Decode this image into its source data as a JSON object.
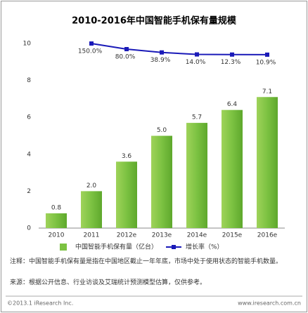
{
  "chart_data": {
    "type": "bar",
    "title": "2010-2016年中国智能手机保有量规模",
    "categories": [
      "2010",
      "2011",
      "2012e",
      "2013e",
      "2014e",
      "2015e",
      "2016e"
    ],
    "series": [
      {
        "name": "中国智能手机保有量（亿台）",
        "type": "bar",
        "color": "#7cc242",
        "values": [
          0.8,
          2.0,
          3.6,
          5.0,
          5.7,
          6.4,
          7.1
        ],
        "value_labels": [
          "0.8",
          "2.0",
          "3.6",
          "5.0",
          "5.7",
          "6.4",
          "7.1"
        ]
      },
      {
        "name": "增长率（%）",
        "type": "line",
        "axis": "y2",
        "color": "#1a1ab8",
        "values": [
          null,
          150.0,
          80.0,
          38.9,
          14.0,
          12.3,
          10.9
        ],
        "value_labels": [
          null,
          "150.0%",
          "80.0%",
          "38.9%",
          "14.0%",
          "12.3%",
          "10.9%"
        ]
      }
    ],
    "ylim": [
      0,
      10
    ],
    "yticks": [
      0,
      2,
      4,
      6,
      8,
      10
    ],
    "y2lim": [
      -2150,
      150
    ],
    "grid": false
  },
  "notes": [
    "注释：中国智能手机保有量是指在中国地区截止一年年底，市场中处于使用状态的智能手机数量。",
    "来源：根据公开信息、行业访谈及艾瑞统计预测模型估算，仅供参考。"
  ],
  "copyright": "©2013.1 iResearch Inc.",
  "website": "www.iresearch.com.cn"
}
